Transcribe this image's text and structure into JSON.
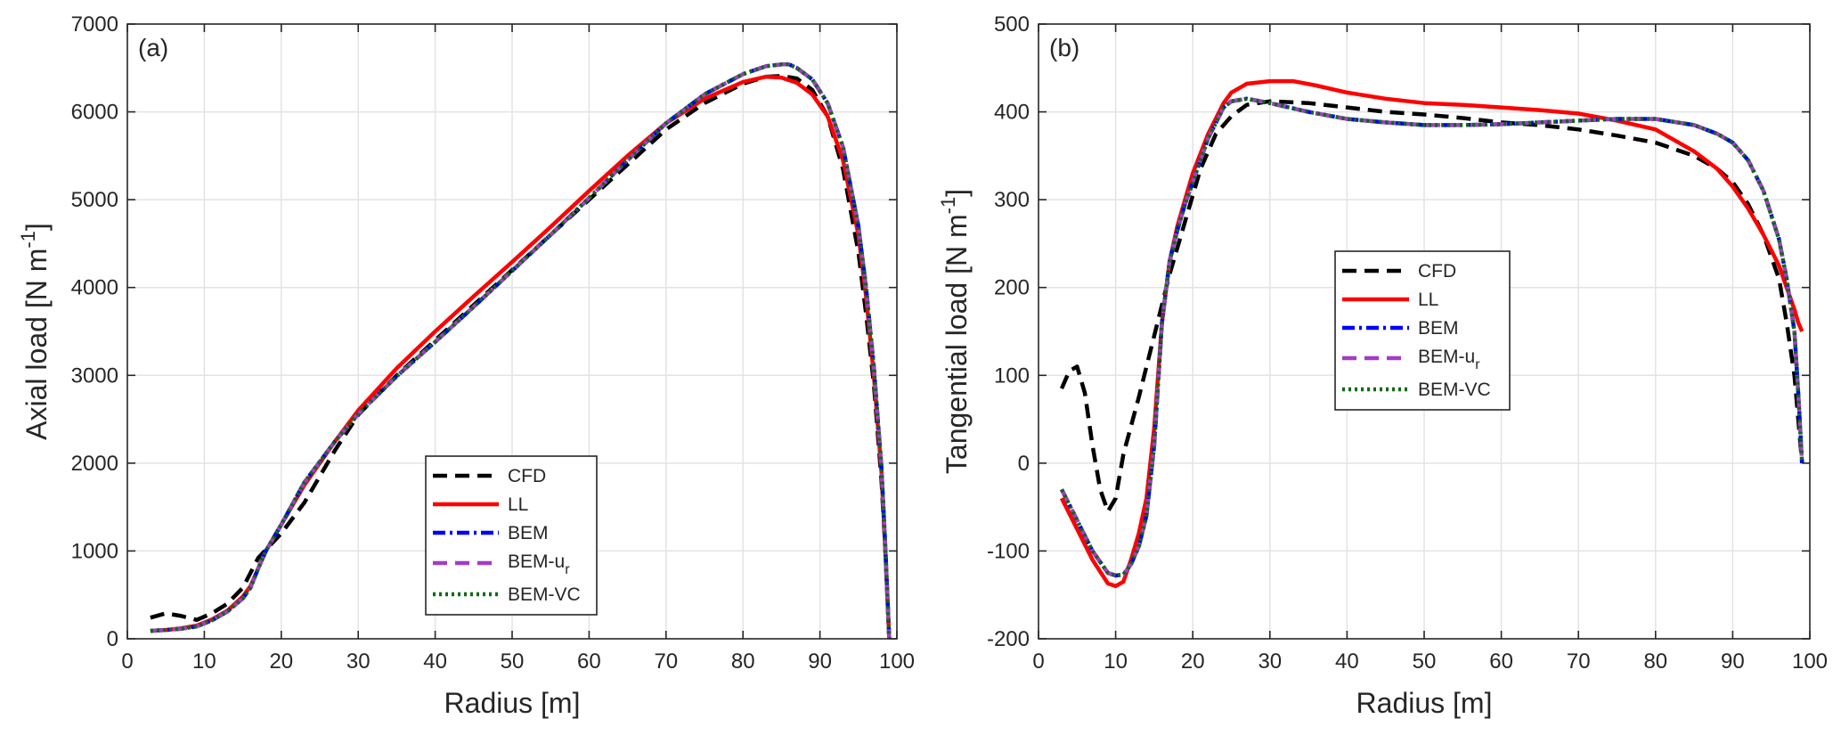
{
  "chart_data": [
    {
      "type": "line",
      "panel_label": "(a)",
      "xlabel": "Radius [m]",
      "ylabel": "Axial load [N m-1]",
      "ylabel_base": "Axial load [N m",
      "ylabel_sup": "-1",
      "ylabel_end": "]",
      "xlim": [
        0,
        100
      ],
      "ylim": [
        0,
        7000
      ],
      "xticks": [
        0,
        10,
        20,
        30,
        40,
        50,
        60,
        70,
        80,
        90,
        100
      ],
      "yticks": [
        0,
        1000,
        2000,
        3000,
        4000,
        5000,
        6000,
        7000
      ],
      "grid": true,
      "legend_position": "lower-center",
      "series": [
        {
          "name": "CFD",
          "color": "#000000",
          "style": "dashed",
          "x": [
            3,
            5,
            7,
            9,
            11,
            13,
            15,
            17,
            20,
            23,
            27,
            30,
            35,
            40,
            45,
            50,
            55,
            60,
            65,
            70,
            75,
            80,
            83,
            85,
            87,
            89,
            91,
            93,
            95,
            96,
            97,
            98,
            98.5,
            99
          ],
          "y": [
            240,
            290,
            260,
            215,
            290,
            400,
            580,
            920,
            1200,
            1550,
            2150,
            2550,
            3000,
            3400,
            3800,
            4200,
            4600,
            5000,
            5400,
            5800,
            6100,
            6320,
            6400,
            6410,
            6380,
            6250,
            5950,
            5350,
            4400,
            3700,
            2900,
            1800,
            1000,
            0
          ]
        },
        {
          "name": "LL",
          "color": "#ff0000",
          "style": "solid",
          "x": [
            3,
            5,
            7,
            9,
            11,
            13,
            15,
            16,
            17,
            18,
            20,
            23,
            27,
            30,
            35,
            40,
            45,
            50,
            55,
            60,
            65,
            70,
            75,
            80,
            83,
            85,
            87,
            89,
            91,
            93,
            95,
            96,
            97,
            98,
            98.5,
            99
          ],
          "y": [
            90,
            100,
            120,
            150,
            220,
            320,
            480,
            600,
            800,
            1000,
            1300,
            1750,
            2250,
            2600,
            3080,
            3500,
            3900,
            4290,
            4690,
            5100,
            5500,
            5870,
            6150,
            6340,
            6400,
            6390,
            6330,
            6200,
            5950,
            5450,
            4600,
            3900,
            3000,
            1900,
            1000,
            0
          ]
        },
        {
          "name": "BEM",
          "color": "#0000ff",
          "style": "dashdot",
          "x": [
            3,
            5,
            7,
            9,
            11,
            13,
            15,
            16,
            17,
            18,
            20,
            23,
            27,
            30,
            35,
            40,
            45,
            50,
            55,
            60,
            65,
            70,
            75,
            80,
            83,
            85,
            86,
            87,
            89,
            91,
            93,
            95,
            96,
            97,
            98,
            98.5,
            99
          ],
          "y": [
            90,
            100,
            115,
            140,
            210,
            310,
            460,
            580,
            800,
            1000,
            1300,
            1780,
            2250,
            2560,
            2990,
            3380,
            3780,
            4190,
            4600,
            5020,
            5450,
            5870,
            6200,
            6430,
            6520,
            6540,
            6540,
            6500,
            6370,
            6100,
            5600,
            4700,
            4000,
            3100,
            1950,
            1050,
            0
          ]
        },
        {
          "name": "BEM-ur",
          "color": "#a23cc7",
          "style": "dashed",
          "x": [
            3,
            5,
            7,
            9,
            11,
            13,
            15,
            16,
            17,
            18,
            20,
            23,
            27,
            30,
            35,
            40,
            45,
            50,
            55,
            60,
            65,
            70,
            75,
            80,
            83,
            85,
            86,
            87,
            89,
            91,
            93,
            95,
            96,
            97,
            98,
            98.5,
            99
          ],
          "y": [
            90,
            100,
            115,
            140,
            210,
            310,
            460,
            580,
            800,
            1000,
            1300,
            1780,
            2250,
            2560,
            2990,
            3380,
            3780,
            4190,
            4600,
            5020,
            5450,
            5870,
            6200,
            6430,
            6520,
            6540,
            6540,
            6500,
            6370,
            6100,
            5600,
            4700,
            4000,
            3100,
            1950,
            1050,
            0
          ]
        },
        {
          "name": "BEM-VC",
          "color": "#0b6b12",
          "style": "dotted",
          "x": [
            3,
            5,
            7,
            9,
            11,
            13,
            15,
            16,
            17,
            18,
            20,
            23,
            27,
            30,
            35,
            40,
            45,
            50,
            55,
            60,
            65,
            70,
            75,
            80,
            83,
            85,
            86,
            87,
            89,
            91,
            93,
            95,
            96,
            97,
            98,
            98.5,
            99
          ],
          "y": [
            90,
            100,
            115,
            140,
            210,
            310,
            460,
            580,
            800,
            1000,
            1300,
            1780,
            2250,
            2560,
            2990,
            3380,
            3780,
            4190,
            4600,
            5020,
            5450,
            5870,
            6200,
            6430,
            6520,
            6540,
            6540,
            6500,
            6370,
            6100,
            5600,
            4700,
            4000,
            3100,
            1950,
            1050,
            0
          ]
        }
      ]
    },
    {
      "type": "line",
      "panel_label": "(b)",
      "xlabel": "Radius [m]",
      "ylabel": "Tangential load [N m-1]",
      "ylabel_base": "Tangential load [N m",
      "ylabel_sup": "-1",
      "ylabel_end": "]",
      "xlim": [
        0,
        100
      ],
      "ylim": [
        -200,
        500
      ],
      "xticks": [
        0,
        10,
        20,
        30,
        40,
        50,
        60,
        70,
        80,
        90,
        100
      ],
      "yticks": [
        -200,
        -100,
        0,
        100,
        200,
        300,
        400,
        500
      ],
      "grid": true,
      "legend_position": "center",
      "series": [
        {
          "name": "CFD",
          "color": "#000000",
          "style": "dashed",
          "x": [
            3,
            4,
            5,
            6,
            7,
            8,
            9,
            10,
            11,
            13,
            15,
            17,
            19,
            21,
            23,
            25,
            27,
            30,
            35,
            40,
            45,
            50,
            55,
            60,
            65,
            70,
            75,
            80,
            85,
            88,
            90,
            92,
            94,
            96,
            97,
            98,
            98.5,
            99
          ],
          "y": [
            85,
            105,
            110,
            80,
            20,
            -30,
            -55,
            -40,
            10,
            75,
            145,
            215,
            275,
            335,
            375,
            395,
            408,
            412,
            410,
            405,
            400,
            397,
            393,
            388,
            385,
            380,
            373,
            365,
            350,
            335,
            320,
            295,
            260,
            210,
            160,
            100,
            50,
            0
          ]
        },
        {
          "name": "LL",
          "color": "#ff0000",
          "style": "solid",
          "x": [
            3,
            5,
            7,
            9,
            10,
            11,
            12,
            13,
            14,
            15,
            16,
            17,
            18,
            19,
            20,
            22,
            24,
            25,
            27,
            30,
            33,
            36,
            40,
            45,
            50,
            55,
            60,
            65,
            70,
            75,
            80,
            85,
            88,
            90,
            92,
            94,
            96,
            97,
            98,
            98.5,
            99
          ],
          "y": [
            -40,
            -75,
            -110,
            -137,
            -140,
            -135,
            -110,
            -80,
            -40,
            40,
            160,
            230,
            270,
            300,
            330,
            375,
            410,
            422,
            432,
            435,
            435,
            430,
            422,
            415,
            410,
            408,
            405,
            402,
            398,
            390,
            380,
            355,
            335,
            315,
            290,
            260,
            225,
            200,
            175,
            160,
            150
          ]
        },
        {
          "name": "BEM",
          "color": "#0000ff",
          "style": "dashdot",
          "x": [
            3,
            5,
            7,
            9,
            10,
            11,
            12,
            13,
            14,
            15,
            16,
            17,
            18,
            19,
            20,
            22,
            24,
            25,
            27,
            30,
            35,
            40,
            45,
            50,
            55,
            60,
            65,
            70,
            75,
            80,
            85,
            88,
            90,
            92,
            94,
            96,
            97,
            98,
            98.5,
            99
          ],
          "y": [
            -30,
            -65,
            -100,
            -125,
            -128,
            -127,
            -115,
            -95,
            -60,
            20,
            160,
            230,
            265,
            295,
            320,
            370,
            405,
            412,
            415,
            410,
            400,
            392,
            388,
            385,
            385,
            386,
            388,
            390,
            392,
            392,
            385,
            375,
            365,
            345,
            310,
            255,
            210,
            150,
            80,
            0
          ]
        },
        {
          "name": "BEM-ur",
          "color": "#a23cc7",
          "style": "dashed",
          "x": [
            3,
            5,
            7,
            9,
            10,
            11,
            12,
            13,
            14,
            15,
            16,
            17,
            18,
            19,
            20,
            22,
            24,
            25,
            27,
            30,
            35,
            40,
            45,
            50,
            55,
            60,
            65,
            70,
            75,
            80,
            85,
            88,
            90,
            92,
            94,
            96,
            97,
            98,
            98.5,
            99
          ],
          "y": [
            -30,
            -65,
            -100,
            -125,
            -128,
            -127,
            -115,
            -95,
            -60,
            20,
            160,
            230,
            265,
            295,
            320,
            370,
            405,
            412,
            415,
            410,
            400,
            392,
            388,
            385,
            385,
            386,
            388,
            390,
            392,
            392,
            385,
            375,
            365,
            345,
            310,
            255,
            210,
            150,
            80,
            0
          ]
        },
        {
          "name": "BEM-VC",
          "color": "#0b6b12",
          "style": "dotted",
          "x": [
            3,
            5,
            7,
            9,
            10,
            11,
            12,
            13,
            14,
            15,
            16,
            17,
            18,
            19,
            20,
            22,
            24,
            25,
            27,
            30,
            35,
            40,
            45,
            50,
            55,
            60,
            65,
            70,
            75,
            80,
            85,
            88,
            90,
            92,
            94,
            96,
            97,
            98,
            98.5,
            99
          ],
          "y": [
            -30,
            -65,
            -100,
            -125,
            -128,
            -127,
            -115,
            -95,
            -60,
            20,
            160,
            230,
            265,
            295,
            320,
            370,
            405,
            412,
            415,
            410,
            400,
            392,
            388,
            385,
            385,
            386,
            388,
            390,
            392,
            392,
            385,
            375,
            365,
            345,
            310,
            255,
            210,
            150,
            80,
            0
          ]
        }
      ]
    }
  ],
  "legend_labels": {
    "cfd": "CFD",
    "ll": "LL",
    "bem": "BEM",
    "bem_ur_base": "BEM-u",
    "bem_ur_sub": "r",
    "bem_vc": "BEM-VC"
  }
}
